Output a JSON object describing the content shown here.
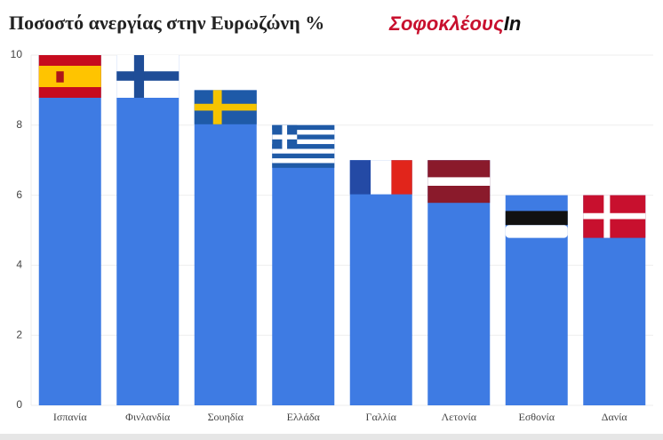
{
  "chart_data": {
    "type": "bar",
    "title": "Ποσοστό ανεργίας στην Ευρωζώνη %",
    "logo_main": "Σοφοκλέους",
    "logo_suffix": "In",
    "categories": [
      "Ισπανία",
      "Φινλανδία",
      "Σουηδία",
      "Ελλάδα",
      "Γαλλία",
      "Λετονία",
      "Εσθονία",
      "Δανία"
    ],
    "values": [
      10,
      10,
      9,
      8,
      7,
      7,
      6,
      6
    ],
    "color": "#3e7be3",
    "ylim": [
      0,
      10
    ],
    "yticks": [
      0,
      2,
      4,
      6,
      8,
      10
    ],
    "grid": true
  }
}
